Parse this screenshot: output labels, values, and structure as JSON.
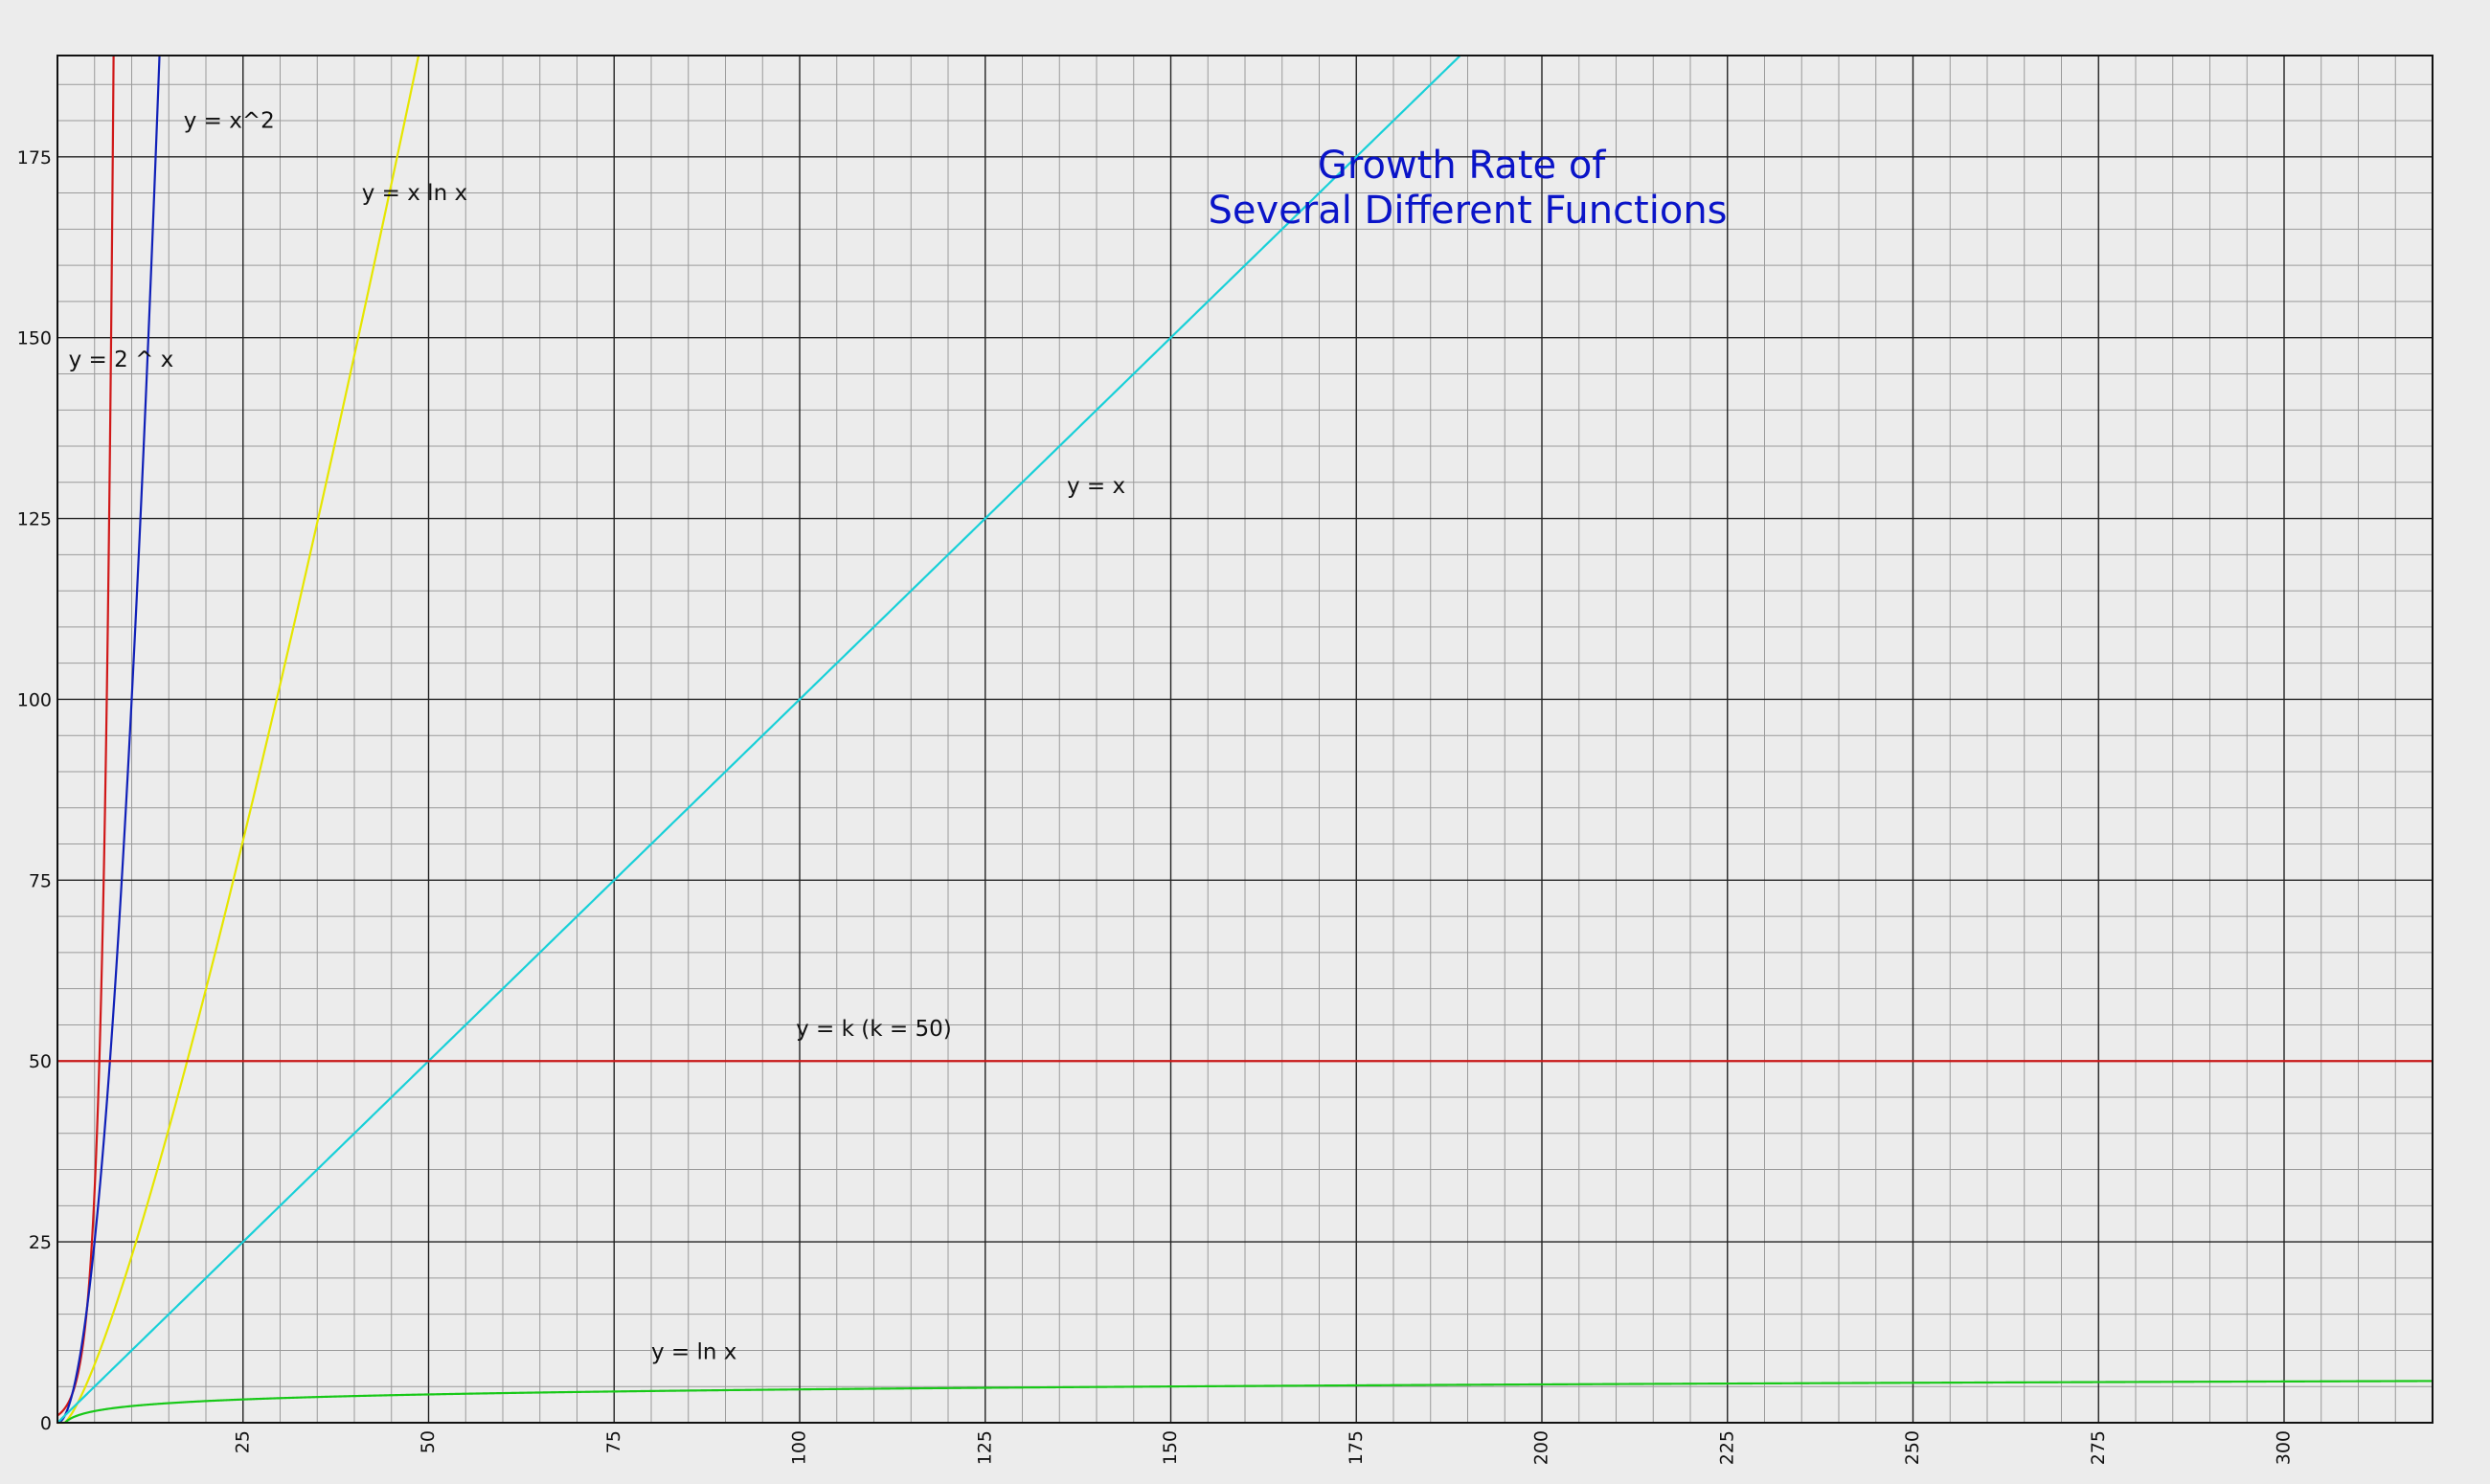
{
  "chart_data": {
    "type": "line",
    "title_lines": [
      "Growth Rate of",
      "Several Different Functions"
    ],
    "xlabel": "",
    "ylabel": "",
    "xlim": [
      0,
      320
    ],
    "ylim": [
      0,
      189
    ],
    "x_ticks": [
      0,
      25,
      50,
      75,
      100,
      125,
      150,
      175,
      200,
      225,
      250,
      275,
      300
    ],
    "y_ticks": [
      0,
      25,
      50,
      75,
      100,
      125,
      150,
      175
    ],
    "major_grid_step": 25,
    "minor_grid_step": 5,
    "grid": true,
    "legend": "none",
    "series": [
      {
        "name": "y = 2 ^ x",
        "function": "pow2",
        "color": "#d01818",
        "label_at": [
          1.5,
          146
        ]
      },
      {
        "name": "y = x^2",
        "function": "square",
        "color": "#1020b8",
        "label_at": [
          17,
          179
        ]
      },
      {
        "name": "y = x ln x",
        "function": "xlnx",
        "color": "#e6e600",
        "label_at": [
          41,
          169
        ]
      },
      {
        "name": "y = x",
        "function": "identity",
        "color": "#18d0d8",
        "label_at": [
          136,
          128.5
        ]
      },
      {
        "name": "y = k (k = 50)",
        "function": "constant",
        "k": 50,
        "color": "#c81818",
        "label_at": [
          99.5,
          53.5
        ]
      },
      {
        "name": "y = ln x",
        "function": "ln",
        "color": "#18c818",
        "label_at": [
          80,
          8.8
        ]
      }
    ]
  },
  "colors": {
    "background": "#ececec",
    "title": "#0a14c8",
    "major_grid": "#222222",
    "minor_grid": "#9a9a9a"
  }
}
